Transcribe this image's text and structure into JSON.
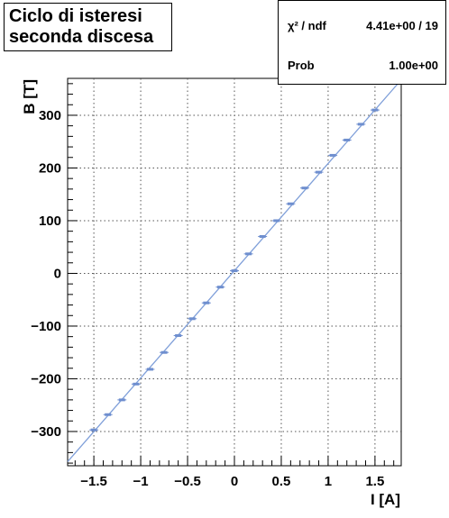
{
  "chart_data": {
    "type": "scatter",
    "title_lines": [
      "Ciclo di isteresi",
      "seconda discesa"
    ],
    "xlabel": "I [A]",
    "ylabel": "B [T]",
    "xlim": [
      -1.78,
      1.78
    ],
    "ylim": [
      -365,
      370
    ],
    "xticks": [
      -1.5,
      -1,
      -0.5,
      0,
      0.5,
      1,
      1.5
    ],
    "xtick_labels": [
      "−1.5",
      "−1",
      "−0.5",
      "0",
      "0.5",
      "1",
      "1.5"
    ],
    "yticks": [
      -300,
      -200,
      -100,
      0,
      100,
      200,
      300
    ],
    "ytick_labels": [
      "−300",
      "−200",
      "−100",
      "0",
      "100",
      "200",
      "300"
    ],
    "grid": true,
    "points": {
      "x": [
        -1.5,
        -1.35,
        -1.2,
        -1.05,
        -0.9,
        -0.75,
        -0.6,
        -0.45,
        -0.3,
        -0.15,
        0.0,
        0.15,
        0.3,
        0.45,
        0.6,
        0.75,
        0.9,
        1.05,
        1.2,
        1.35,
        1.5
      ],
      "y": [
        -297,
        -268,
        -240,
        -210,
        -182,
        -150,
        -118,
        -86,
        -56,
        -26,
        5,
        37,
        70,
        100,
        132,
        162,
        192,
        224,
        253,
        283,
        310
      ]
    },
    "fit": {
      "slope": 203.5,
      "intercept": 5
    },
    "stats": [
      {
        "label": "χ² / ndf",
        "value": "4.41e+00 / 19"
      },
      {
        "label": "Prob",
        "value": "1.00e+00"
      }
    ],
    "colors": {
      "points": "#6f8fcf",
      "fit": "#7f9fd9",
      "grid": "#555555",
      "axis": "#000000"
    }
  }
}
